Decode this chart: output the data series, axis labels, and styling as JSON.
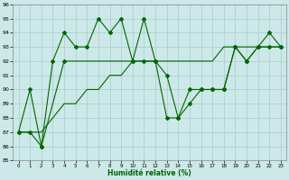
{
  "xlabel": "Humidité relative (%)",
  "xlim": [
    -0.5,
    23.5
  ],
  "ylim": [
    85,
    96
  ],
  "yticks": [
    85,
    86,
    87,
    88,
    89,
    90,
    91,
    92,
    93,
    94,
    95,
    96
  ],
  "xticks": [
    0,
    1,
    2,
    3,
    4,
    5,
    6,
    7,
    8,
    9,
    10,
    11,
    12,
    13,
    14,
    15,
    16,
    17,
    18,
    19,
    20,
    21,
    22,
    23
  ],
  "bg_color": "#cce8e8",
  "grid_color": "#aacccc",
  "line_color": "#006600",
  "series1_x": [
    0,
    1,
    2,
    3,
    4,
    5,
    6,
    7,
    8,
    9,
    10,
    11,
    12,
    13,
    14,
    15,
    16,
    17,
    18,
    19,
    20,
    21,
    22,
    23
  ],
  "series1_y": [
    87,
    90,
    86,
    92,
    94,
    93,
    93,
    95,
    94,
    95,
    92,
    95,
    92,
    91,
    88,
    89,
    90,
    90,
    90,
    93,
    92,
    93,
    94,
    93
  ],
  "series2_x": [
    0,
    1,
    2,
    3,
    4,
    5,
    6,
    7,
    8,
    9,
    10,
    11,
    12,
    13,
    14,
    15,
    16,
    17,
    18,
    19,
    20,
    21,
    22,
    23
  ],
  "series2_y": [
    87,
    87,
    87,
    88,
    89,
    89,
    90,
    90,
    91,
    91,
    92,
    92,
    92,
    92,
    92,
    92,
    92,
    92,
    93,
    93,
    93,
    93,
    93,
    93
  ],
  "series3_x": [
    0,
    1,
    2,
    4,
    10,
    11,
    12,
    13,
    14,
    15,
    16,
    17,
    18,
    19,
    20,
    21,
    22,
    23
  ],
  "series3_y": [
    87,
    87,
    86,
    92,
    92,
    92,
    92,
    88,
    88,
    90,
    90,
    90,
    90,
    93,
    92,
    93,
    93,
    93
  ]
}
